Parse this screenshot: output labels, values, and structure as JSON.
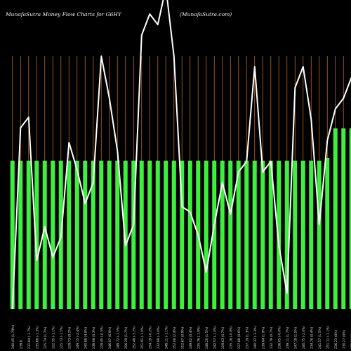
{
  "header": {
    "title": "MunafaSutra  Money Flow  Charts for G6HY",
    "site": "(MunafaSutra.com)"
  },
  "chart_data": {
    "type": "bar",
    "title": "MunafaSutra  Money Flow  Charts for G6HY",
    "xlabel": "",
    "ylabel": "",
    "grid": true,
    "colors": {
      "background": "#000000",
      "bar": "#3ef03e",
      "line": "#ffffff",
      "gridline": "#b86a1e",
      "label": "#d8d8d8"
    },
    "categories": [
      "240.45 (1.79%)",
      "239.8",
      "231.84 (-1.7%)",
      "235.86 (-1.3%)",
      "225.74 (1.7%)",
      "222.35 (-1.1%)",
      "225.73 (-1.5%)",
      "229.73 (0.2%)",
      "249.15 (-2.4%)",
      "240.88 (4.8%)",
      "238.08 (0.3%)",
      "229.45 (-0.5%)",
      "246.07 (6.9%)",
      "249.72 (-1.5%)",
      "256.29 (1.7%)",
      "252.48 (-3.2%)",
      "251.91 (-1.0%)",
      "254.19 (-0.2%)",
      "232.89 (-3.0%)",
      "248.11 (-1.1%)",
      "252.08 (2.4%)",
      "252.67 (0.9%)",
      "249.02 (0.4%)",
      "235.76 (-1.9%)",
      "248.20 (1.5%)",
      "242.57 (-1.0%)",
      "229.63 (0.7%)",
      "235.18 (-0.8%)",
      "227.88 (0.6%)",
      "237.19 (1.3%)",
      "240.37 (-3.3%)",
      "239.84 (1.9%)",
      "232.79 (0.7%)",
      "236.05 (-0.6%)",
      "239.11 (1.7%)",
      "247.18 (1.5%)",
      "240.75 (-2.0%)",
      "234.78 (0.4%)",
      "241.57 (1.5%)",
      "251.11 (-1.1%)",
      "236.23 (0%)",
      "230.27 (0%)",
      "233.26 (0%)",
      "219.91 (0%)",
      "238.45 (0%)"
    ],
    "values": [
      55,
      55,
      55,
      55,
      55,
      55,
      55,
      55,
      55,
      55,
      55,
      55,
      55,
      55,
      55,
      55,
      55,
      55,
      55,
      55,
      55,
      55,
      55,
      55,
      55,
      55,
      55,
      55,
      55,
      55,
      55,
      55,
      55,
      55,
      55,
      55,
      55,
      55,
      55,
      56,
      67,
      67,
      67,
      67,
      67
    ],
    "line_values": [
      0,
      172,
      182,
      46,
      78,
      49,
      68,
      158,
      132,
      100,
      120,
      240,
      200,
      150,
      60,
      80,
      260,
      280,
      270,
      305,
      240,
      97,
      92,
      70,
      35,
      80,
      120,
      90,
      130,
      140,
      230,
      130,
      140,
      60,
      15,
      210,
      230,
      180,
      80,
      160,
      190,
      200,
      220,
      200,
      200
    ],
    "ylim": [
      0,
      150
    ]
  }
}
